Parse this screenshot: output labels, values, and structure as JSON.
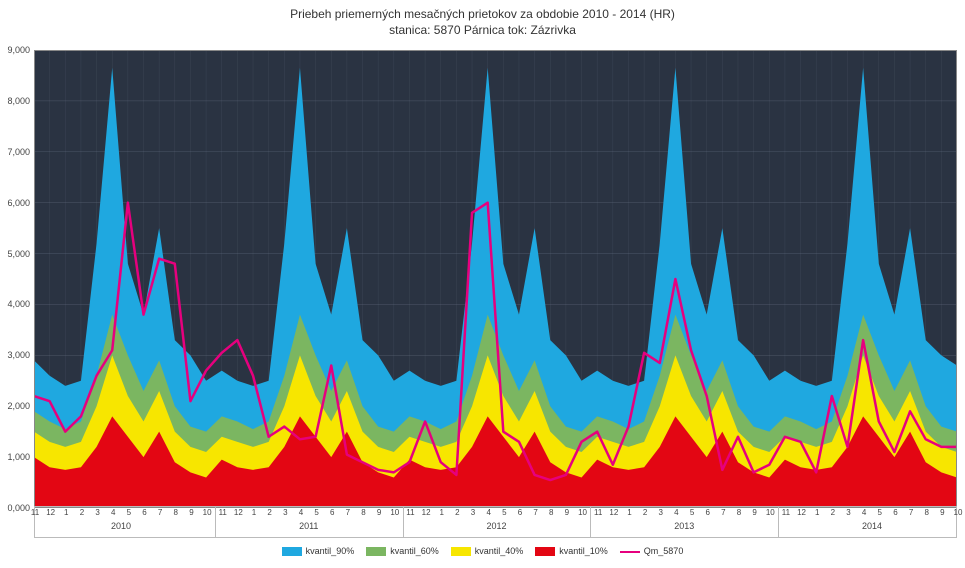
{
  "title": {
    "line1": "Priebeh priemerných mesačných prietokov za obdobie 2010 - 2014 (HR)",
    "line2": "stanica: 5870 Párnica      tok: Zázrivka",
    "fontsize": 12,
    "color": "#333333"
  },
  "chart": {
    "type": "area+line",
    "background_color": "#2a3342",
    "grid_color": "#6b7689",
    "ylim": [
      0,
      9000
    ],
    "ytick_step": 1000,
    "ytick_labels": [
      "0,000",
      "1,000",
      "2,000",
      "3,000",
      "4,000",
      "5,000",
      "6,000",
      "7,000",
      "8,000",
      "9,000"
    ],
    "ylabel_fontsize": 9,
    "xlabel_fontsize": 8,
    "months": [
      "11",
      "12",
      "1",
      "2",
      "3",
      "4",
      "5",
      "6",
      "7",
      "8",
      "9",
      "10"
    ],
    "years": [
      "2010",
      "2011",
      "2012",
      "2013",
      "2014"
    ],
    "x_count": 60,
    "series": {
      "kvantil_90": {
        "label": "kvantil_90%",
        "color": "#1fa8e0",
        "values": [
          2900,
          2600,
          2400,
          2500,
          5200,
          8650,
          4800,
          3800,
          5500,
          3300,
          3000,
          2500,
          2700,
          2500,
          2400,
          2500,
          5200,
          8650,
          4800,
          3800,
          5500,
          3300,
          3000,
          2500,
          2700,
          2500,
          2400,
          2500,
          5200,
          8650,
          4800,
          3800,
          5500,
          3300,
          3000,
          2500,
          2700,
          2500,
          2400,
          2500,
          5200,
          8650,
          4800,
          3800,
          5500,
          3300,
          3000,
          2500,
          2700,
          2500,
          2400,
          2500,
          5200,
          8650,
          4800,
          3800,
          5500,
          3300,
          3000,
          2800
        ]
      },
      "kvantil_60": {
        "label": "kvantil_60%",
        "color": "#7bb661",
        "values": [
          1900,
          1700,
          1550,
          1700,
          2600,
          3800,
          3000,
          2300,
          2900,
          2000,
          1600,
          1500,
          1800,
          1700,
          1550,
          1700,
          2600,
          3800,
          3000,
          2300,
          2900,
          2000,
          1600,
          1500,
          1800,
          1700,
          1550,
          1700,
          2600,
          3800,
          3000,
          2300,
          2900,
          2000,
          1600,
          1500,
          1800,
          1700,
          1550,
          1700,
          2600,
          3800,
          3000,
          2300,
          2900,
          2000,
          1600,
          1500,
          1800,
          1700,
          1550,
          1700,
          2600,
          3800,
          3000,
          2300,
          2900,
          2000,
          1600,
          1500
        ]
      },
      "kvantil_40": {
        "label": "kvantil_40%",
        "color": "#f7e600",
        "values": [
          1500,
          1300,
          1200,
          1300,
          2000,
          3000,
          2200,
          1700,
          2300,
          1500,
          1200,
          1100,
          1400,
          1300,
          1200,
          1300,
          2000,
          3000,
          2200,
          1700,
          2300,
          1500,
          1200,
          1100,
          1400,
          1300,
          1200,
          1300,
          2000,
          3000,
          2200,
          1700,
          2300,
          1500,
          1200,
          1100,
          1400,
          1300,
          1200,
          1300,
          2000,
          3000,
          2200,
          1700,
          2300,
          1500,
          1200,
          1100,
          1400,
          1300,
          1200,
          1300,
          2000,
          3000,
          2200,
          1700,
          2300,
          1500,
          1200,
          1100
        ]
      },
      "kvantil_10": {
        "label": "kvantil_10%",
        "color": "#e30613",
        "values": [
          1000,
          800,
          750,
          800,
          1200,
          1800,
          1400,
          1000,
          1500,
          900,
          700,
          600,
          950,
          800,
          750,
          800,
          1200,
          1800,
          1400,
          1000,
          1500,
          900,
          700,
          600,
          950,
          800,
          750,
          800,
          1200,
          1800,
          1400,
          1000,
          1500,
          900,
          700,
          600,
          950,
          800,
          750,
          800,
          1200,
          1800,
          1400,
          1000,
          1500,
          900,
          700,
          600,
          950,
          800,
          750,
          800,
          1200,
          1800,
          1400,
          1000,
          1500,
          900,
          700,
          600
        ]
      },
      "Qm_5870": {
        "label": "Qm_5870",
        "color": "#e6007e",
        "line_width": 2.5,
        "values": [
          2200,
          2100,
          1500,
          1800,
          2600,
          3100,
          6000,
          3800,
          4900,
          4800,
          2100,
          2700,
          3050,
          3300,
          2600,
          1400,
          1600,
          1350,
          1400,
          2800,
          1050,
          900,
          750,
          700,
          900,
          1700,
          900,
          650,
          5800,
          6000,
          1500,
          1300,
          650,
          550,
          650,
          1300,
          1500,
          850,
          1600,
          3050,
          2850,
          4500,
          3100,
          2200,
          750,
          1400,
          700,
          850,
          1400,
          1300,
          700,
          2200,
          1200,
          3300,
          1700,
          1100,
          1900,
          1350,
          1200,
          1200
        ]
      }
    },
    "series_order_fill": [
      "kvantil_90",
      "kvantil_60",
      "kvantil_40",
      "kvantil_10"
    ],
    "legend_order": [
      "kvantil_90",
      "kvantil_60",
      "kvantil_40",
      "kvantil_10",
      "Qm_5870"
    ]
  }
}
